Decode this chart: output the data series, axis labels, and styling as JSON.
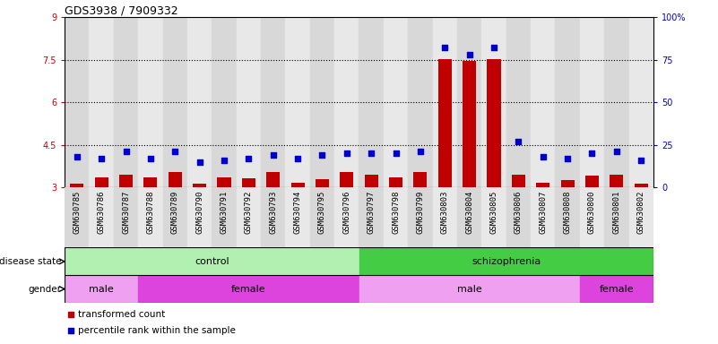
{
  "title": "GDS3938 / 7909332",
  "samples": [
    "GSM630785",
    "GSM630786",
    "GSM630787",
    "GSM630788",
    "GSM630789",
    "GSM630790",
    "GSM630791",
    "GSM630792",
    "GSM630793",
    "GSM630794",
    "GSM630795",
    "GSM630796",
    "GSM630797",
    "GSM630798",
    "GSM630799",
    "GSM630803",
    "GSM630804",
    "GSM630805",
    "GSM630806",
    "GSM630807",
    "GSM630808",
    "GSM630800",
    "GSM630801",
    "GSM630802"
  ],
  "transformed_count": [
    3.15,
    3.35,
    3.45,
    3.35,
    3.55,
    3.12,
    3.35,
    3.32,
    3.55,
    3.18,
    3.28,
    3.55,
    3.45,
    3.35,
    3.55,
    7.52,
    7.45,
    7.52,
    3.45,
    3.18,
    3.25,
    3.42,
    3.45,
    3.15
  ],
  "percentile_rank": [
    18,
    17,
    21,
    17,
    21,
    15,
    16,
    17,
    19,
    17,
    19,
    20,
    20,
    20,
    21,
    82,
    78,
    82,
    27,
    18,
    17,
    20,
    21,
    16
  ],
  "bar_color": "#c00000",
  "dot_color": "#0000cc",
  "ylim_left": [
    3,
    9
  ],
  "ylim_right": [
    0,
    100
  ],
  "yticks_left": [
    3,
    4.5,
    6,
    7.5,
    9
  ],
  "ytick_labels_left": [
    "3",
    "4.5",
    "6",
    "7.5",
    "9"
  ],
  "yticks_right": [
    0,
    25,
    50,
    75,
    100
  ],
  "ytick_labels_right": [
    "0",
    "25",
    "50",
    "75",
    "100%"
  ],
  "hlines": [
    4.5,
    6.0,
    7.5
  ],
  "ds_bands": [
    {
      "start": 0,
      "end": 12,
      "color": "#b2f0b2",
      "label": "control"
    },
    {
      "start": 12,
      "end": 24,
      "color": "#44cc44",
      "label": "schizophrenia"
    }
  ],
  "gender_bands": [
    {
      "start": 0,
      "end": 3,
      "color": "#f0a0f0",
      "label": "male"
    },
    {
      "start": 3,
      "end": 12,
      "color": "#dd44dd",
      "label": "female"
    },
    {
      "start": 12,
      "end": 21,
      "color": "#f0a0f0",
      "label": "male"
    },
    {
      "start": 21,
      "end": 24,
      "color": "#dd44dd",
      "label": "female"
    }
  ],
  "legend_items": [
    {
      "color": "#c00000",
      "label": "transformed count"
    },
    {
      "color": "#0000cc",
      "label": "percentile rank within the sample"
    }
  ],
  "bar_width": 0.55,
  "dot_size": 22,
  "background_color": "#ffffff",
  "col_colors": [
    "#d8d8d8",
    "#e8e8e8"
  ],
  "label_fontsize": 6.5,
  "tick_fontsize": 7,
  "title_fontsize": 9
}
